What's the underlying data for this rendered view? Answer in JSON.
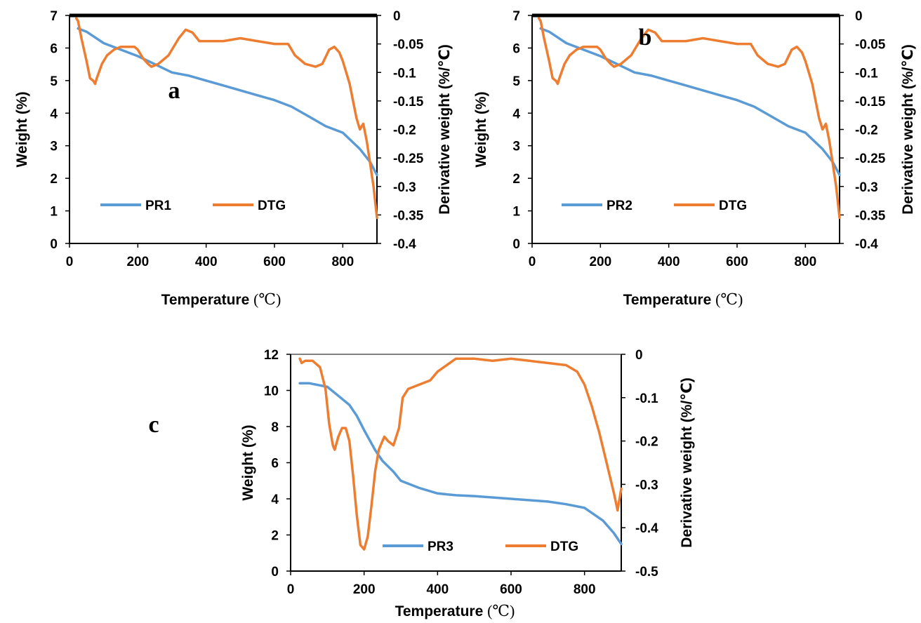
{
  "colors": {
    "weight": "#5B9BD5",
    "dtg": "#ED7D31",
    "frame": "#000000"
  },
  "chart_data": [
    {
      "type": "line",
      "panel_label": "a",
      "xlabel": "Temperature",
      "xunit": "(℃)",
      "ylabel": "Weight (%)",
      "y2label": "Derivative weight (%/℃)",
      "xlim": [
        0,
        900
      ],
      "ylim": [
        0,
        7
      ],
      "y2lim": [
        -0.4,
        0
      ],
      "xticks": [
        "0",
        "200",
        "400",
        "600",
        "800"
      ],
      "yticks": [
        "0",
        "1",
        "2",
        "3",
        "4",
        "5",
        "6",
        "7"
      ],
      "y2ticks": [
        "-0.4",
        "-0.35",
        "-0.3",
        "-0.25",
        "-0.2",
        "-0.15",
        "-0.1",
        "-0.05",
        "0"
      ],
      "legend_position": "bottom-left",
      "series": [
        {
          "name": "PR1",
          "axis": "left",
          "x": [
            25,
            50,
            100,
            150,
            200,
            250,
            300,
            350,
            400,
            450,
            500,
            550,
            600,
            650,
            700,
            750,
            800,
            850,
            880,
            900
          ],
          "values": [
            6.6,
            6.5,
            6.15,
            5.95,
            5.75,
            5.5,
            5.25,
            5.15,
            5.0,
            4.85,
            4.7,
            4.55,
            4.4,
            4.2,
            3.9,
            3.6,
            3.4,
            2.9,
            2.5,
            2.1
          ]
        },
        {
          "name": "DTG",
          "axis": "right",
          "x": [
            20,
            25,
            35,
            50,
            60,
            70,
            75,
            80,
            95,
            110,
            130,
            150,
            170,
            190,
            200,
            215,
            230,
            240,
            260,
            290,
            320,
            340,
            360,
            380,
            400,
            450,
            500,
            550,
            600,
            640,
            660,
            690,
            720,
            740,
            760,
            775,
            790,
            800,
            810,
            820,
            830,
            840,
            850,
            860,
            870,
            880,
            890,
            900
          ],
          "values": [
            -0.005,
            -0.01,
            -0.04,
            -0.08,
            -0.11,
            -0.115,
            -0.12,
            -0.11,
            -0.085,
            -0.07,
            -0.06,
            -0.055,
            -0.055,
            -0.055,
            -0.06,
            -0.075,
            -0.085,
            -0.09,
            -0.085,
            -0.07,
            -0.04,
            -0.025,
            -0.03,
            -0.045,
            -0.045,
            -0.045,
            -0.04,
            -0.045,
            -0.05,
            -0.05,
            -0.07,
            -0.085,
            -0.09,
            -0.085,
            -0.06,
            -0.055,
            -0.065,
            -0.08,
            -0.1,
            -0.12,
            -0.15,
            -0.18,
            -0.2,
            -0.19,
            -0.22,
            -0.26,
            -0.3,
            -0.355
          ]
        }
      ]
    },
    {
      "type": "line",
      "panel_label": "b",
      "xlabel": "Temperature",
      "xunit": "(℃)",
      "ylabel": "Weight (%)",
      "y2label": "Derivative weight (%/℃)",
      "xlim": [
        0,
        900
      ],
      "ylim": [
        0,
        7
      ],
      "y2lim": [
        -0.4,
        0
      ],
      "xticks": [
        "0",
        "200",
        "400",
        "600",
        "800"
      ],
      "yticks": [
        "0",
        "1",
        "2",
        "3",
        "4",
        "5",
        "6",
        "7"
      ],
      "y2ticks": [
        "-0.4",
        "-0.35",
        "-0.3",
        "-0.25",
        "-0.2",
        "-0.15",
        "-0.1",
        "-0.05",
        "0"
      ],
      "legend_position": "bottom-left",
      "series": [
        {
          "name": "PR2",
          "axis": "left",
          "x": [
            25,
            50,
            100,
            150,
            200,
            250,
            300,
            350,
            400,
            450,
            500,
            550,
            600,
            650,
            700,
            750,
            800,
            850,
            880,
            900
          ],
          "values": [
            6.6,
            6.5,
            6.15,
            5.95,
            5.75,
            5.5,
            5.25,
            5.15,
            5.0,
            4.85,
            4.7,
            4.55,
            4.4,
            4.2,
            3.9,
            3.6,
            3.4,
            2.9,
            2.5,
            2.1
          ]
        },
        {
          "name": "DTG",
          "axis": "right",
          "x": [
            20,
            25,
            35,
            50,
            60,
            70,
            75,
            80,
            95,
            110,
            130,
            150,
            170,
            190,
            200,
            215,
            230,
            240,
            260,
            290,
            320,
            340,
            360,
            380,
            400,
            450,
            500,
            550,
            600,
            640,
            660,
            690,
            720,
            740,
            760,
            775,
            790,
            800,
            810,
            820,
            830,
            840,
            850,
            860,
            870,
            880,
            890,
            900
          ],
          "values": [
            -0.005,
            -0.01,
            -0.04,
            -0.08,
            -0.11,
            -0.115,
            -0.12,
            -0.11,
            -0.085,
            -0.07,
            -0.06,
            -0.055,
            -0.055,
            -0.055,
            -0.06,
            -0.075,
            -0.085,
            -0.09,
            -0.085,
            -0.07,
            -0.04,
            -0.025,
            -0.03,
            -0.045,
            -0.045,
            -0.045,
            -0.04,
            -0.045,
            -0.05,
            -0.05,
            -0.07,
            -0.085,
            -0.09,
            -0.085,
            -0.06,
            -0.055,
            -0.065,
            -0.08,
            -0.1,
            -0.12,
            -0.15,
            -0.18,
            -0.2,
            -0.19,
            -0.22,
            -0.26,
            -0.3,
            -0.355
          ]
        }
      ]
    },
    {
      "type": "line",
      "panel_label": "c",
      "xlabel": "Temperature",
      "xunit": "(℃)",
      "ylabel": "Weight (%)",
      "y2label": "Derivative weight (%/℃)",
      "xlim": [
        0,
        900
      ],
      "ylim": [
        0,
        12
      ],
      "y2lim": [
        -0.5,
        0
      ],
      "xticks": [
        "0",
        "200",
        "400",
        "600",
        "800"
      ],
      "yticks": [
        "0",
        "2",
        "4",
        "6",
        "8",
        "10",
        "12"
      ],
      "y2ticks": [
        "-0.5",
        "-0.4",
        "-0.3",
        "-0.2",
        "-0.1",
        "0"
      ],
      "legend_position": "bottom-center",
      "series": [
        {
          "name": "PR3",
          "axis": "left",
          "x": [
            25,
            50,
            100,
            130,
            160,
            180,
            200,
            230,
            250,
            280,
            300,
            350,
            400,
            450,
            500,
            600,
            700,
            750,
            800,
            850,
            880,
            900
          ],
          "values": [
            10.4,
            10.4,
            10.2,
            9.7,
            9.2,
            8.6,
            7.8,
            6.7,
            6.1,
            5.5,
            5.0,
            4.6,
            4.3,
            4.2,
            4.15,
            4.0,
            3.85,
            3.7,
            3.5,
            2.8,
            2.1,
            1.5
          ]
        },
        {
          "name": "DTG",
          "axis": "right",
          "x": [
            25,
            30,
            40,
            60,
            80,
            95,
            105,
            115,
            120,
            130,
            140,
            150,
            160,
            170,
            180,
            190,
            200,
            210,
            220,
            230,
            240,
            255,
            265,
            280,
            295,
            305,
            320,
            350,
            380,
            400,
            450,
            500,
            550,
            600,
            650,
            700,
            750,
            780,
            800,
            820,
            840,
            860,
            880,
            890,
            900
          ],
          "values": [
            -0.01,
            -0.02,
            -0.015,
            -0.015,
            -0.03,
            -0.08,
            -0.16,
            -0.21,
            -0.22,
            -0.19,
            -0.17,
            -0.17,
            -0.2,
            -0.28,
            -0.37,
            -0.44,
            -0.45,
            -0.42,
            -0.35,
            -0.27,
            -0.22,
            -0.19,
            -0.2,
            -0.21,
            -0.17,
            -0.1,
            -0.08,
            -0.07,
            -0.06,
            -0.04,
            -0.01,
            -0.01,
            -0.015,
            -0.01,
            -0.015,
            -0.02,
            -0.025,
            -0.04,
            -0.07,
            -0.12,
            -0.18,
            -0.25,
            -0.32,
            -0.36,
            -0.31
          ]
        }
      ]
    }
  ]
}
